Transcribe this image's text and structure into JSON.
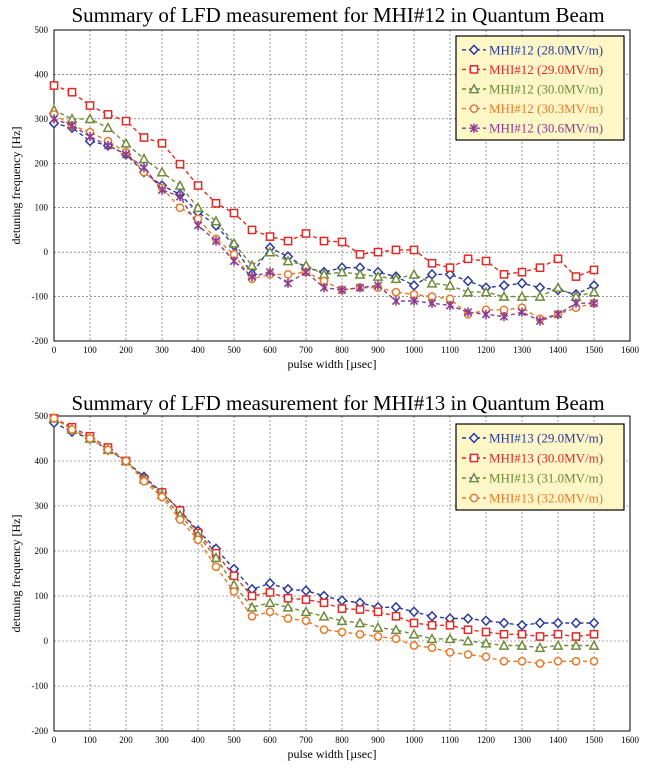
{
  "chart_data": [
    {
      "type": "line",
      "title": "Summary of LFD measurement for MHI#12 in Quantum Beam",
      "xlabel": "pulse width [µsec]",
      "ylabel": "detuning frequency [Hz]",
      "xlim": [
        0,
        1600
      ],
      "ylim": [
        -200,
        500
      ],
      "xticks": [
        0,
        100,
        200,
        300,
        400,
        500,
        600,
        700,
        800,
        900,
        1000,
        1100,
        1200,
        1300,
        1400,
        1500,
        1600
      ],
      "yticks": [
        -200,
        -100,
        0,
        100,
        200,
        300,
        400,
        500
      ],
      "grid": true,
      "legend_position": "top-right",
      "x": [
        0,
        50,
        100,
        150,
        200,
        250,
        300,
        350,
        400,
        450,
        500,
        550,
        600,
        650,
        700,
        750,
        800,
        850,
        900,
        950,
        1000,
        1050,
        1100,
        1150,
        1200,
        1250,
        1300,
        1350,
        1400,
        1450,
        1500
      ],
      "series": [
        {
          "name": "MHI#12 (28.0MV/m)",
          "color": "#2b3a9b",
          "marker": "diamond",
          "values": [
            290,
            280,
            250,
            240,
            220,
            180,
            150,
            130,
            90,
            60,
            15,
            -50,
            10,
            -10,
            -35,
            -45,
            -35,
            -35,
            -45,
            -55,
            -75,
            -50,
            -50,
            -65,
            -80,
            -75,
            -70,
            -80,
            -85,
            -95,
            -75
          ]
        },
        {
          "name": "MHI#12 (29.0MV/m)",
          "color": "#e02a26",
          "marker": "square",
          "values": [
            375,
            360,
            330,
            310,
            295,
            258,
            245,
            198,
            150,
            110,
            88,
            50,
            35,
            25,
            42,
            25,
            23,
            -5,
            0,
            5,
            5,
            -25,
            -35,
            -15,
            -20,
            -50,
            -45,
            -35,
            -15,
            -55,
            -40
          ]
        },
        {
          "name": "MHI#12 (30.0MV/m)",
          "color": "#6e8a3a",
          "marker": "triangle",
          "values": [
            320,
            300,
            300,
            280,
            245,
            210,
            180,
            150,
            100,
            70,
            20,
            -30,
            0,
            -20,
            -30,
            -50,
            -45,
            -50,
            -55,
            -60,
            -50,
            -70,
            -75,
            -90,
            -90,
            -100,
            -100,
            -100,
            -80,
            -100,
            -90
          ]
        },
        {
          "name": "MHI#12 (30.3MV/m)",
          "color": "#e8792b",
          "marker": "circle",
          "values": [
            310,
            285,
            270,
            250,
            225,
            180,
            145,
            100,
            75,
            30,
            -5,
            -60,
            -50,
            -50,
            -45,
            -65,
            -85,
            -80,
            -80,
            -90,
            -95,
            -100,
            -105,
            -140,
            -130,
            -130,
            -125,
            -150,
            -140,
            -125,
            -115
          ]
        },
        {
          "name": "MHI#12 (30.6MV/m)",
          "color": "#8b3c8e",
          "marker": "star",
          "values": [
            300,
            285,
            260,
            240,
            220,
            190,
            140,
            125,
            60,
            25,
            -20,
            -55,
            -45,
            -70,
            -45,
            -80,
            -85,
            -80,
            -75,
            -110,
            -110,
            -115,
            -120,
            -135,
            -140,
            -145,
            -135,
            -155,
            -140,
            -115,
            -115
          ]
        }
      ]
    },
    {
      "type": "line",
      "title": "Summary of LFD measurement for MHI#13 in Quantum Beam",
      "xlabel": "pulse width [µsec]",
      "ylabel": "detuning frequency [Hz]",
      "xlim": [
        0,
        1600
      ],
      "ylim": [
        -200,
        500
      ],
      "xticks": [
        0,
        100,
        200,
        300,
        400,
        500,
        600,
        700,
        800,
        900,
        1000,
        1100,
        1200,
        1300,
        1400,
        1500,
        1600
      ],
      "yticks": [
        -200,
        -100,
        0,
        100,
        200,
        300,
        400,
        500
      ],
      "grid": true,
      "legend_position": "top-right",
      "x": [
        0,
        50,
        100,
        150,
        200,
        250,
        300,
        350,
        400,
        450,
        500,
        550,
        600,
        650,
        700,
        750,
        800,
        850,
        900,
        950,
        1000,
        1050,
        1100,
        1150,
        1200,
        1250,
        1300,
        1350,
        1400,
        1450,
        1500
      ],
      "series": [
        {
          "name": "MHI#13 (29.0MV/m)",
          "color": "#2b3a9b",
          "marker": "diamond",
          "values": [
            485,
            465,
            450,
            425,
            400,
            365,
            330,
            290,
            245,
            205,
            160,
            115,
            128,
            115,
            112,
            100,
            90,
            85,
            75,
            75,
            65,
            55,
            50,
            50,
            45,
            40,
            35,
            40,
            40,
            40,
            40
          ]
        },
        {
          "name": "MHI#13 (30.0MV/m)",
          "color": "#e02a26",
          "marker": "square",
          "values": [
            495,
            475,
            455,
            430,
            400,
            360,
            330,
            290,
            240,
            195,
            145,
            100,
            108,
            95,
            92,
            85,
            72,
            70,
            65,
            55,
            40,
            35,
            35,
            25,
            20,
            15,
            15,
            10,
            15,
            10,
            15
          ]
        },
        {
          "name": "MHI#13 (31.0MV/m)",
          "color": "#6e8a3a",
          "marker": "triangle",
          "values": [
            495,
            470,
            450,
            425,
            400,
            360,
            325,
            280,
            235,
            185,
            125,
            75,
            85,
            75,
            65,
            55,
            45,
            40,
            30,
            25,
            15,
            5,
            5,
            0,
            -5,
            -10,
            -10,
            -15,
            -10,
            -10,
            -10
          ]
        },
        {
          "name": "MHI#13 (32.0MV/m)",
          "color": "#e8792b",
          "marker": "circle",
          "values": [
            495,
            470,
            450,
            425,
            400,
            355,
            320,
            270,
            225,
            165,
            110,
            55,
            65,
            50,
            45,
            25,
            20,
            15,
            10,
            5,
            -10,
            -15,
            -25,
            -30,
            -35,
            -45,
            -45,
            -50,
            -45,
            -45,
            -45
          ]
        }
      ]
    }
  ]
}
